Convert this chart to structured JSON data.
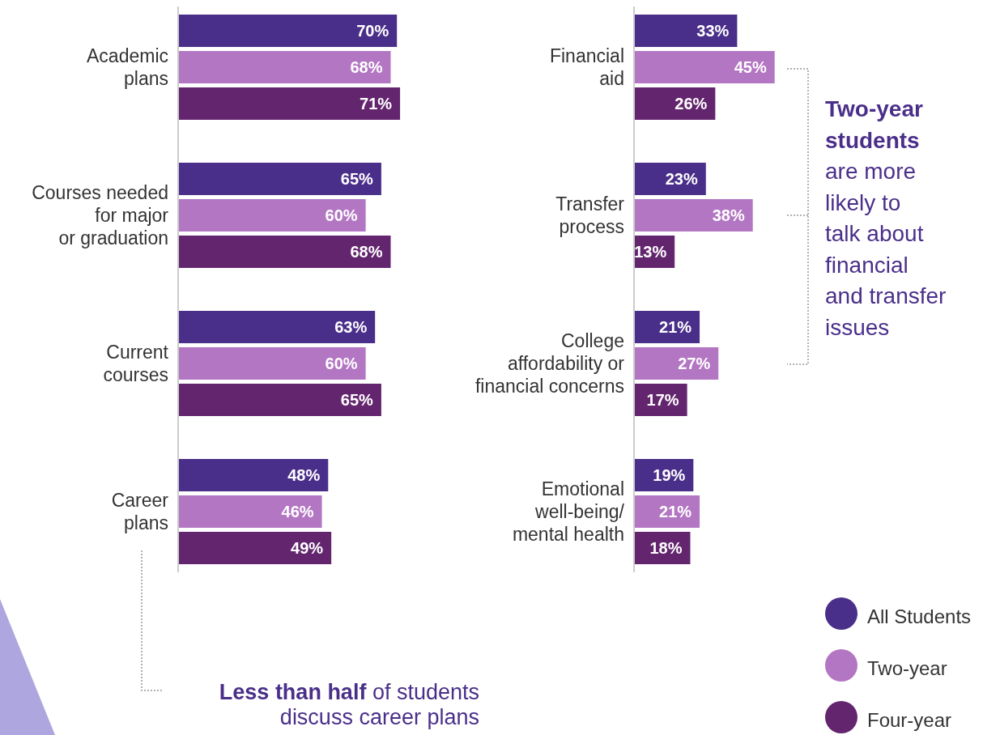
{
  "chart_data": [
    {
      "type": "bar",
      "orientation": "horizontal",
      "categories": [
        "Academic\nplans",
        "Courses needed\nfor major\nor graduation",
        "Current\ncourses",
        "Career\nplans"
      ],
      "series": [
        {
          "color": "#4a2f8a",
          "values": [
            70,
            65,
            63,
            48
          ],
          "value_labels": [
            "70%",
            "65%",
            "63%",
            "48%"
          ]
        },
        {
          "color": "#b376c3",
          "values": [
            68,
            60,
            60,
            46
          ],
          "value_labels": [
            "68%",
            "60%",
            "60%",
            "46%"
          ]
        },
        {
          "color": "#63256e",
          "values": [
            71,
            68,
            65,
            49
          ],
          "value_labels": [
            "71%",
            "68%",
            "65%",
            "49%"
          ]
        }
      ],
      "legend": false,
      "annotations": [
        "Less than half",
        "of students discuss career plans"
      ]
    },
    {
      "type": "bar",
      "orientation": "horizontal",
      "categories": [
        "Financial\naid",
        "Transfer\nprocess",
        "College\naffordability or\nfinancial concerns",
        "Emotional\nwell-being/\nmental health"
      ],
      "series": [
        {
          "name": "All Students",
          "color": "#4a2f8a",
          "values": [
            33,
            23,
            21,
            19
          ],
          "value_labels": [
            "33%",
            "23%",
            "21%",
            "19%"
          ]
        },
        {
          "name": "Two-year",
          "color": "#b376c3",
          "values": [
            45,
            38,
            27,
            21
          ],
          "value_labels": [
            "45%",
            "38%",
            "27%",
            "21%"
          ]
        },
        {
          "name": "Four-year",
          "color": "#63256e",
          "values": [
            26,
            13,
            17,
            18
          ],
          "value_labels": [
            "26%",
            "13%",
            "17%",
            "18%"
          ]
        }
      ],
      "legend": "bottom right",
      "annotations": [
        "Two-year students",
        "are more likely to talk about financial and transfer issues"
      ]
    }
  ]
}
